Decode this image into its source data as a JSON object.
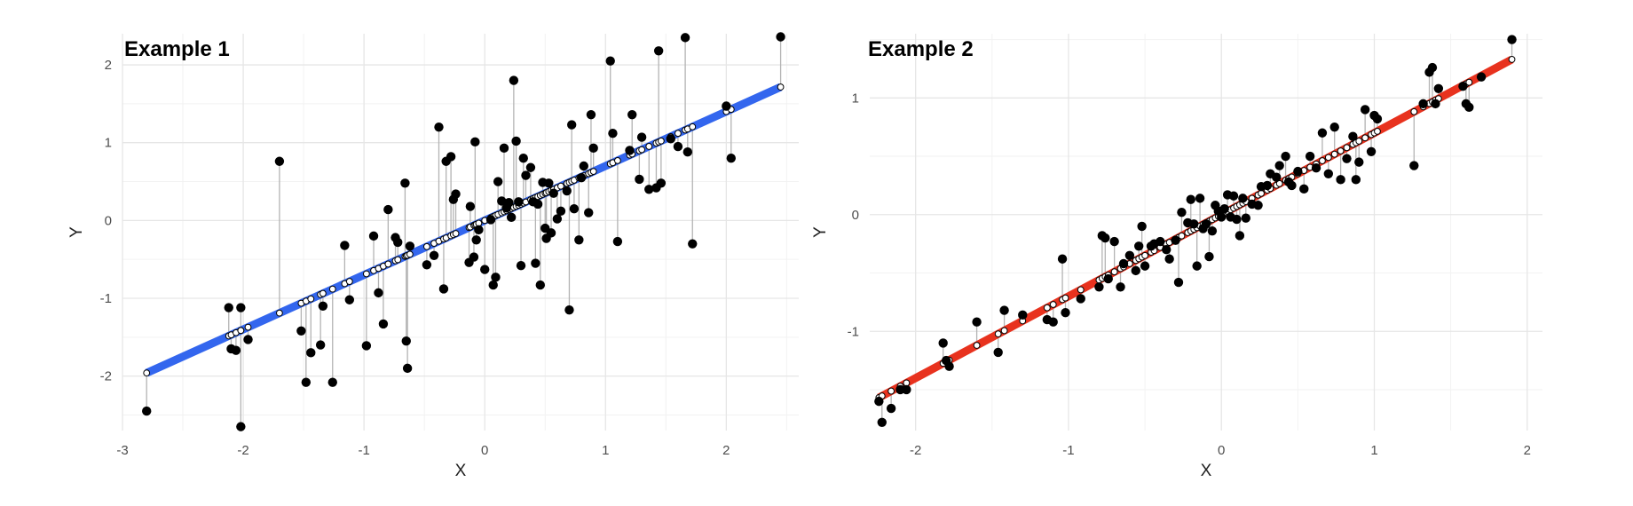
{
  "chart_data": [
    {
      "type": "scatter",
      "title": "Example 1",
      "xlabel": "X",
      "ylabel": "Y",
      "xlim": [
        -3,
        2.6
      ],
      "ylim": [
        -2.7,
        2.4
      ],
      "x_ticks": [
        -3,
        -2,
        -1,
        0,
        1,
        2
      ],
      "y_ticks": [
        -2,
        -1,
        0,
        1,
        2
      ],
      "x_tick_labels": [
        "-3",
        "-2",
        "-1",
        "0",
        "1",
        "2"
      ],
      "y_tick_labels": [
        "-2",
        "-1",
        "0",
        "1",
        "2"
      ],
      "grid": true,
      "fit_line": {
        "intercept": 0.0,
        "slope": 0.7,
        "color": "#3366ee"
      },
      "residual_color": "#b3b3b3",
      "point_color": "#000000",
      "points": [
        [
          -2.8,
          -2.45
        ],
        [
          -2.12,
          -1.12
        ],
        [
          -2.1,
          -1.65
        ],
        [
          -2.06,
          -1.67
        ],
        [
          -2.02,
          -2.65
        ],
        [
          -2.02,
          -1.12
        ],
        [
          -1.96,
          -1.53
        ],
        [
          -1.7,
          0.76
        ],
        [
          -1.52,
          -1.42
        ],
        [
          -1.48,
          -2.08
        ],
        [
          -1.44,
          -1.7
        ],
        [
          -1.36,
          -1.6
        ],
        [
          -1.34,
          -1.1
        ],
        [
          -1.26,
          -2.08
        ],
        [
          -1.16,
          -0.32
        ],
        [
          -1.12,
          -1.02
        ],
        [
          -0.98,
          -1.61
        ],
        [
          -0.92,
          -0.2
        ],
        [
          -0.88,
          -0.93
        ],
        [
          -0.84,
          -1.33
        ],
        [
          -0.8,
          0.14
        ],
        [
          -0.74,
          -0.22
        ],
        [
          -0.72,
          -0.28
        ],
        [
          -0.66,
          0.48
        ],
        [
          -0.65,
          -1.55
        ],
        [
          -0.64,
          -1.9
        ],
        [
          -0.62,
          -0.33
        ],
        [
          -0.48,
          -0.57
        ],
        [
          -0.42,
          -0.45
        ],
        [
          -0.38,
          1.2
        ],
        [
          -0.34,
          -0.88
        ],
        [
          -0.32,
          0.76
        ],
        [
          -0.28,
          0.82
        ],
        [
          -0.26,
          0.27
        ],
        [
          -0.24,
          0.34
        ],
        [
          -0.13,
          -0.54
        ],
        [
          -0.12,
          0.18
        ],
        [
          -0.09,
          -0.47
        ],
        [
          -0.08,
          1.01
        ],
        [
          -0.07,
          -0.25
        ],
        [
          -0.05,
          -0.12
        ],
        [
          0.0,
          -0.63
        ],
        [
          0.05,
          0.01
        ],
        [
          0.07,
          -0.83
        ],
        [
          0.09,
          -0.73
        ],
        [
          0.11,
          0.5
        ],
        [
          0.14,
          0.25
        ],
        [
          0.16,
          0.93
        ],
        [
          0.18,
          0.16
        ],
        [
          0.2,
          0.23
        ],
        [
          0.22,
          0.04
        ],
        [
          0.24,
          1.8
        ],
        [
          0.26,
          1.02
        ],
        [
          0.28,
          0.24
        ],
        [
          0.3,
          -0.58
        ],
        [
          0.32,
          0.8
        ],
        [
          0.34,
          0.58
        ],
        [
          0.38,
          0.68
        ],
        [
          0.4,
          0.24
        ],
        [
          0.42,
          -0.55
        ],
        [
          0.44,
          0.21
        ],
        [
          0.46,
          -0.83
        ],
        [
          0.48,
          0.49
        ],
        [
          0.5,
          -0.1
        ],
        [
          0.51,
          -0.23
        ],
        [
          0.53,
          0.48
        ],
        [
          0.55,
          -0.16
        ],
        [
          0.57,
          0.35
        ],
        [
          0.6,
          0.02
        ],
        [
          0.63,
          0.12
        ],
        [
          0.68,
          0.38
        ],
        [
          0.7,
          -1.15
        ],
        [
          0.72,
          1.23
        ],
        [
          0.74,
          0.15
        ],
        [
          0.78,
          -0.25
        ],
        [
          0.8,
          0.55
        ],
        [
          0.82,
          0.7
        ],
        [
          0.86,
          0.1
        ],
        [
          0.88,
          1.36
        ],
        [
          0.9,
          0.93
        ],
        [
          1.04,
          2.05
        ],
        [
          1.06,
          1.12
        ],
        [
          1.1,
          -0.27
        ],
        [
          1.2,
          0.9
        ],
        [
          1.22,
          1.36
        ],
        [
          1.28,
          0.53
        ],
        [
          1.3,
          1.07
        ],
        [
          1.36,
          0.4
        ],
        [
          1.42,
          0.42
        ],
        [
          1.44,
          2.18
        ],
        [
          1.46,
          0.48
        ],
        [
          1.54,
          1.05
        ],
        [
          1.6,
          0.95
        ],
        [
          1.66,
          2.35
        ],
        [
          1.68,
          0.88
        ],
        [
          1.72,
          -0.3
        ],
        [
          2.0,
          1.47
        ],
        [
          2.04,
          0.8
        ],
        [
          2.45,
          2.36
        ]
      ]
    },
    {
      "type": "scatter",
      "title": "Example 2",
      "xlabel": "X",
      "ylabel": "Y",
      "xlim": [
        -2.3,
        2.1
      ],
      "ylim": [
        -1.85,
        1.55
      ],
      "x_ticks": [
        -2,
        -1,
        0,
        1,
        2
      ],
      "y_ticks": [
        -1,
        0,
        1
      ],
      "x_tick_labels": [
        "-2",
        "-1",
        "0",
        "1",
        "2"
      ],
      "y_tick_labels": [
        "-1",
        "0",
        "1"
      ],
      "grid": true,
      "fit_line": {
        "intercept": 0.0,
        "slope": 0.7,
        "color": "#e8321e"
      },
      "residual_color": "#b3b3b3",
      "point_color": "#000000",
      "points": [
        [
          -2.24,
          -1.6
        ],
        [
          -2.22,
          -1.78
        ],
        [
          -2.16,
          -1.66
        ],
        [
          -2.1,
          -1.5
        ],
        [
          -2.06,
          -1.5
        ],
        [
          -1.82,
          -1.1
        ],
        [
          -1.8,
          -1.25
        ],
        [
          -1.78,
          -1.3
        ],
        [
          -1.6,
          -0.92
        ],
        [
          -1.46,
          -1.18
        ],
        [
          -1.42,
          -0.82
        ],
        [
          -1.3,
          -0.86
        ],
        [
          -1.14,
          -0.9
        ],
        [
          -1.1,
          -0.92
        ],
        [
          -1.04,
          -0.38
        ],
        [
          -1.02,
          -0.84
        ],
        [
          -0.92,
          -0.72
        ],
        [
          -0.8,
          -0.62
        ],
        [
          -0.78,
          -0.18
        ],
        [
          -0.76,
          -0.2
        ],
        [
          -0.74,
          -0.55
        ],
        [
          -0.7,
          -0.23
        ],
        [
          -0.66,
          -0.62
        ],
        [
          -0.64,
          -0.42
        ],
        [
          -0.6,
          -0.35
        ],
        [
          -0.56,
          -0.48
        ],
        [
          -0.54,
          -0.27
        ],
        [
          -0.52,
          -0.1
        ],
        [
          -0.5,
          -0.44
        ],
        [
          -0.46,
          -0.27
        ],
        [
          -0.44,
          -0.25
        ],
        [
          -0.4,
          -0.23
        ],
        [
          -0.36,
          -0.3
        ],
        [
          -0.34,
          -0.38
        ],
        [
          -0.3,
          -0.22
        ],
        [
          -0.28,
          -0.58
        ],
        [
          -0.26,
          0.02
        ],
        [
          -0.22,
          -0.07
        ],
        [
          -0.2,
          0.13
        ],
        [
          -0.18,
          -0.08
        ],
        [
          -0.16,
          -0.44
        ],
        [
          -0.14,
          0.14
        ],
        [
          -0.12,
          -0.12
        ],
        [
          -0.1,
          -0.08
        ],
        [
          -0.08,
          -0.36
        ],
        [
          -0.06,
          -0.14
        ],
        [
          -0.04,
          0.08
        ],
        [
          -0.02,
          0.03
        ],
        [
          0.0,
          -0.02
        ],
        [
          0.02,
          0.05
        ],
        [
          0.04,
          0.17
        ],
        [
          0.06,
          -0.02
        ],
        [
          0.08,
          0.16
        ],
        [
          0.1,
          -0.04
        ],
        [
          0.12,
          -0.18
        ],
        [
          0.14,
          0.14
        ],
        [
          0.16,
          -0.03
        ],
        [
          0.2,
          0.09
        ],
        [
          0.24,
          0.08
        ],
        [
          0.26,
          0.24
        ],
        [
          0.3,
          0.25
        ],
        [
          0.32,
          0.35
        ],
        [
          0.36,
          0.32
        ],
        [
          0.38,
          0.42
        ],
        [
          0.42,
          0.5
        ],
        [
          0.44,
          0.28
        ],
        [
          0.46,
          0.25
        ],
        [
          0.5,
          0.37
        ],
        [
          0.54,
          0.22
        ],
        [
          0.58,
          0.5
        ],
        [
          0.62,
          0.4
        ],
        [
          0.66,
          0.7
        ],
        [
          0.7,
          0.35
        ],
        [
          0.74,
          0.75
        ],
        [
          0.78,
          0.3
        ],
        [
          0.82,
          0.48
        ],
        [
          0.86,
          0.67
        ],
        [
          0.88,
          0.3
        ],
        [
          0.9,
          0.45
        ],
        [
          0.94,
          0.9
        ],
        [
          0.98,
          0.54
        ],
        [
          1.0,
          0.85
        ],
        [
          1.02,
          0.82
        ],
        [
          1.26,
          0.42
        ],
        [
          1.32,
          0.95
        ],
        [
          1.36,
          1.22
        ],
        [
          1.38,
          1.26
        ],
        [
          1.4,
          0.95
        ],
        [
          1.42,
          1.08
        ],
        [
          1.58,
          1.1
        ],
        [
          1.6,
          0.95
        ],
        [
          1.62,
          0.92
        ],
        [
          1.7,
          1.18
        ],
        [
          1.9,
          1.5
        ]
      ]
    }
  ]
}
